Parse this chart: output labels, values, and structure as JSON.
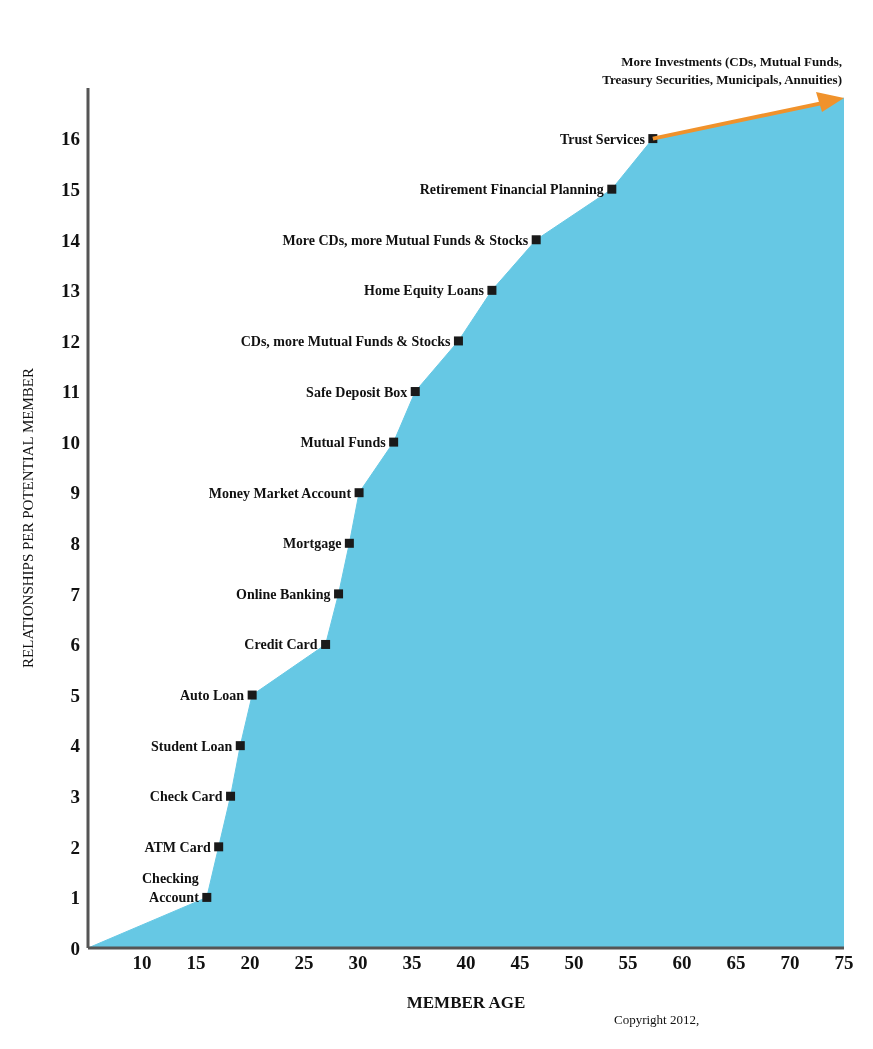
{
  "chart_data": {
    "type": "area",
    "xlabel": "MEMBER AGE",
    "ylabel": "RELATIONSHIPS PER POTENTIAL MEMBER",
    "xlim": [
      5,
      75
    ],
    "ylim": [
      0,
      17
    ],
    "xticks": [
      10,
      15,
      20,
      25,
      30,
      35,
      40,
      45,
      50,
      55,
      60,
      65,
      70,
      75
    ],
    "yticks": [
      0,
      1,
      2,
      3,
      4,
      5,
      6,
      7,
      8,
      9,
      10,
      11,
      12,
      13,
      14,
      15,
      16
    ],
    "grid": false,
    "legend": false,
    "series": [
      {
        "color": "#66c8e4",
        "x": [
          5,
          16,
          17.1,
          18.2,
          19.1,
          20.2,
          27,
          28.2,
          29.2,
          30.1,
          33.3,
          35.3,
          39.3,
          42.4,
          46.5,
          53.5,
          57.3,
          75
        ],
        "values": [
          0,
          1,
          2,
          3,
          4,
          5,
          6,
          7,
          8,
          9,
          10,
          11,
          12,
          13,
          14,
          15,
          16,
          16.8
        ]
      },
      {
        "type": "scatter",
        "color": "#1a1a1a",
        "marker": "square",
        "x": [
          16,
          17.1,
          18.2,
          19.1,
          20.2,
          27,
          28.2,
          29.2,
          30.1,
          33.3,
          35.3,
          39.3,
          42.4,
          46.5,
          53.5,
          57.3
        ],
        "values": [
          1,
          2,
          3,
          4,
          5,
          6,
          7,
          8,
          9,
          10,
          11,
          12,
          13,
          14,
          15,
          16
        ]
      }
    ],
    "annotations": [
      {
        "text": "Checking Account",
        "x": 16,
        "y": 1
      },
      {
        "text": "ATM Card",
        "x": 17.1,
        "y": 2
      },
      {
        "text": "Check Card",
        "x": 18.2,
        "y": 3
      },
      {
        "text": "Student Loan",
        "x": 19.1,
        "y": 4
      },
      {
        "text": "Auto Loan",
        "x": 20.2,
        "y": 5
      },
      {
        "text": "Credit Card",
        "x": 27,
        "y": 6
      },
      {
        "text": "Online Banking",
        "x": 28.2,
        "y": 7
      },
      {
        "text": "Mortgage",
        "x": 29.2,
        "y": 8
      },
      {
        "text": "Money Market Account",
        "x": 30.1,
        "y": 9
      },
      {
        "text": "Mutual Funds",
        "x": 33.3,
        "y": 10
      },
      {
        "text": "Safe Deposit Box",
        "x": 35.3,
        "y": 11
      },
      {
        "text": "CDs, more Mutual Funds & Stocks",
        "x": 39.3,
        "y": 12
      },
      {
        "text": "Home Equity Loans",
        "x": 42.4,
        "y": 13
      },
      {
        "text": "More CDs, more Mutual Funds & Stocks",
        "x": 46.5,
        "y": 14
      },
      {
        "text": "Retirement Financial Planning",
        "x": 53.5,
        "y": 15
      },
      {
        "text": "Trust Services",
        "x": 57.3,
        "y": 16
      },
      {
        "text": "More Investments (CDs, Mutual Funds, Treasury Securities, Municipals, Annuities)",
        "x": 75,
        "y": 16.8
      },
      "Copyright 2012,"
    ]
  }
}
